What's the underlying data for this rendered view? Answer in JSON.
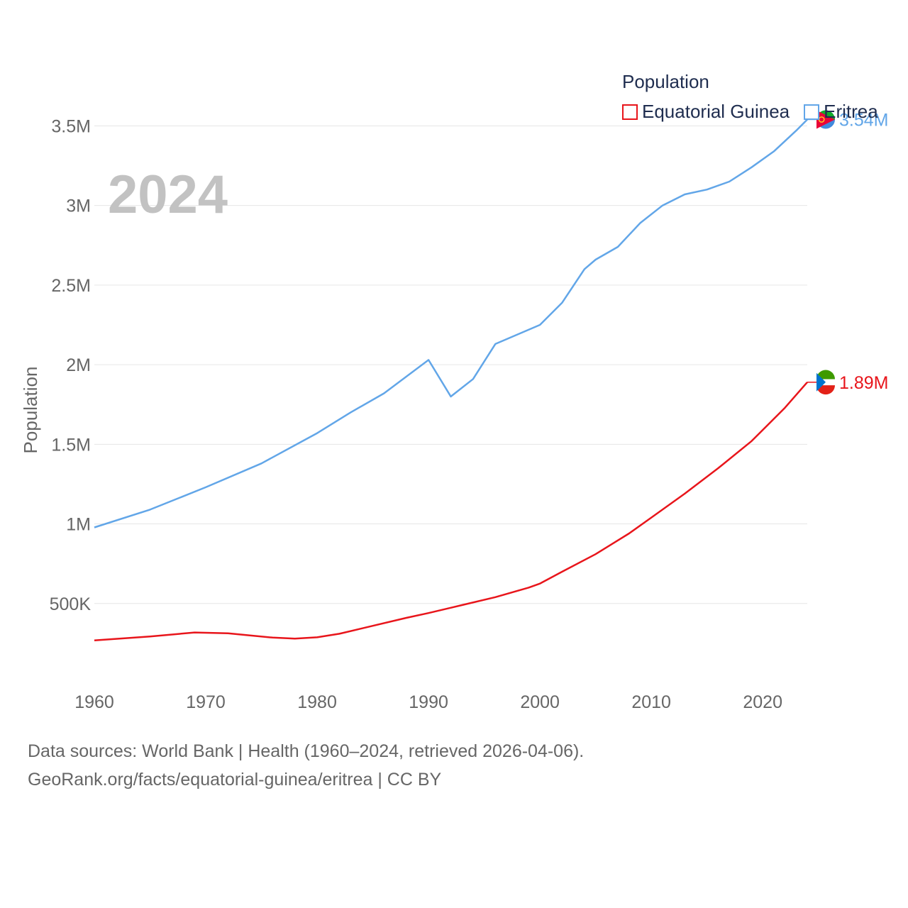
{
  "legend": {
    "title": "Population",
    "items": [
      {
        "label": "Equatorial Guinea",
        "color": "#e8151b"
      },
      {
        "label": "Eritrea",
        "color": "#62a6e8"
      }
    ]
  },
  "source": {
    "line1": "Data sources: World Bank | Health (1960–2024, retrieved 2026-04-06).",
    "line2": "GeoRank.org/facts/equatorial-guinea/eritrea | CC BY"
  },
  "chart_data": {
    "type": "line",
    "title": "",
    "year_label": "2024",
    "xlabel": "",
    "ylabel": "Population",
    "xlim": [
      1960,
      2024
    ],
    "ylim": [
      0,
      3600000
    ],
    "grid": true,
    "x_ticks": [
      1960,
      1970,
      1980,
      1990,
      2000,
      2010,
      2020
    ],
    "x_tick_labels": [
      "1960",
      "1970",
      "1980",
      "1990",
      "2000",
      "2010",
      "2020"
    ],
    "y_ticks": [
      500000,
      1000000,
      1500000,
      2000000,
      2500000,
      3000000,
      3500000
    ],
    "y_tick_labels": [
      "500K",
      "1M",
      "1.5M",
      "2M",
      "2.5M",
      "3M",
      "3.5M"
    ],
    "series": [
      {
        "name": "Equatorial Guinea",
        "color": "#e8151b",
        "end_label": "1.89M",
        "points": [
          [
            1960,
            268000
          ],
          [
            1965,
            293000
          ],
          [
            1969,
            318000
          ],
          [
            1972,
            313000
          ],
          [
            1976,
            286000
          ],
          [
            1978,
            280000
          ],
          [
            1980,
            288000
          ],
          [
            1982,
            310000
          ],
          [
            1985,
            360000
          ],
          [
            1988,
            410000
          ],
          [
            1990,
            440000
          ],
          [
            1993,
            490000
          ],
          [
            1996,
            540000
          ],
          [
            1999,
            600000
          ],
          [
            2000,
            625000
          ],
          [
            2002,
            700000
          ],
          [
            2005,
            810000
          ],
          [
            2008,
            940000
          ],
          [
            2010,
            1040000
          ],
          [
            2013,
            1190000
          ],
          [
            2016,
            1350000
          ],
          [
            2019,
            1520000
          ],
          [
            2020,
            1590000
          ],
          [
            2022,
            1730000
          ],
          [
            2024,
            1890000
          ]
        ]
      },
      {
        "name": "Eritrea",
        "color": "#62a6e8",
        "end_label": "3.54M",
        "points": [
          [
            1960,
            978000
          ],
          [
            1965,
            1090000
          ],
          [
            1970,
            1230000
          ],
          [
            1975,
            1380000
          ],
          [
            1980,
            1570000
          ],
          [
            1983,
            1700000
          ],
          [
            1986,
            1820000
          ],
          [
            1990,
            2030000
          ],
          [
            1992,
            1800000
          ],
          [
            1994,
            1910000
          ],
          [
            1996,
            2130000
          ],
          [
            2000,
            2250000
          ],
          [
            2002,
            2390000
          ],
          [
            2004,
            2600000
          ],
          [
            2005,
            2660000
          ],
          [
            2007,
            2740000
          ],
          [
            2009,
            2890000
          ],
          [
            2011,
            3000000
          ],
          [
            2013,
            3070000
          ],
          [
            2015,
            3100000
          ],
          [
            2017,
            3150000
          ],
          [
            2019,
            3240000
          ],
          [
            2021,
            3340000
          ],
          [
            2023,
            3470000
          ],
          [
            2024,
            3540000
          ]
        ]
      }
    ]
  }
}
